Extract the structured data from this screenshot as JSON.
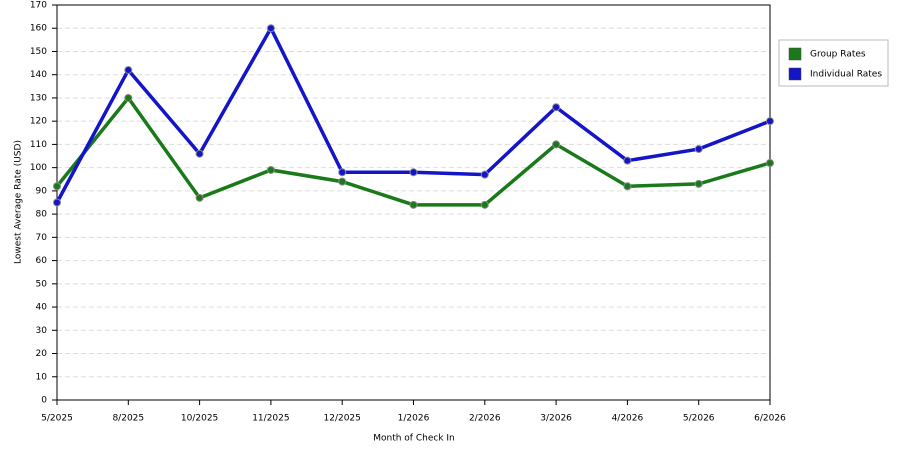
{
  "chart_data": {
    "type": "line",
    "x_label": "Month of Check In",
    "y_label": "Lowest Average Rate (USD)",
    "categories": [
      "5/2025",
      "8/2025",
      "10/2025",
      "11/2025",
      "12/2025",
      "1/2026",
      "2/2026",
      "3/2026",
      "4/2026",
      "5/2026",
      "6/2026"
    ],
    "series": [
      {
        "name": "Group Rates",
        "color": "#1a7a1a",
        "values": [
          92,
          130,
          87,
          99,
          94,
          84,
          84,
          110,
          92,
          93,
          102
        ]
      },
      {
        "name": "Individual Rates",
        "color": "#1414c8",
        "values": [
          85,
          142,
          106,
          160,
          98,
          98,
          97,
          126,
          103,
          108,
          120
        ]
      }
    ],
    "ylim": [
      0,
      170
    ],
    "yticks": [
      0,
      10,
      20,
      30,
      40,
      50,
      60,
      70,
      80,
      90,
      100,
      110,
      120,
      130,
      140,
      150,
      160,
      170
    ],
    "grid": true,
    "legend": "right"
  }
}
